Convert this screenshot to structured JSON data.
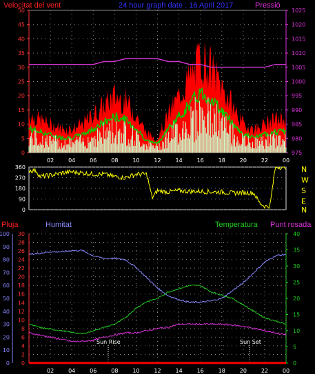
{
  "top": {
    "left_label": "Velocitat del vent",
    "title": "24 hour graph date : 16 April 2017",
    "right_label": "Pressió",
    "left_ticks": [
      "0",
      "5",
      "10",
      "15",
      "20",
      "25",
      "30",
      "35",
      "40",
      "45",
      "50"
    ],
    "right_ticks": [
      "975",
      "980",
      "985",
      "990",
      "995",
      "1000",
      "1005",
      "1010",
      "1015",
      "1020",
      "1025"
    ],
    "x_ticks": [
      "02",
      "04",
      "06",
      "08",
      "10",
      "12",
      "14",
      "16",
      "18",
      "20",
      "22",
      "00"
    ]
  },
  "dir": {
    "left_ticks": [
      "0",
      "90",
      "180",
      "270",
      "360"
    ],
    "right_labels": [
      "N",
      "W",
      "S",
      "E",
      "N"
    ]
  },
  "bottom": {
    "labels": {
      "pluja": "Pluja",
      "humitat": "Humitat",
      "temperatura": "Temperatura",
      "punt_rosada": "Punt rosada"
    },
    "humidity_ticks": [
      "0",
      "10",
      "20",
      "30",
      "40",
      "50",
      "60",
      "70",
      "80",
      "90",
      "100"
    ],
    "rain_ticks": [
      "0",
      "2",
      "4",
      "6",
      "8",
      "10",
      "12",
      "14",
      "16",
      "18",
      "20",
      "22",
      "24",
      "26",
      "28",
      "30"
    ],
    "temp_ticks": [
      "0",
      "5",
      "10",
      "15",
      "20",
      "25",
      "30",
      "35",
      "40"
    ],
    "x_ticks": [
      "02",
      "04",
      "06",
      "08",
      "10",
      "12",
      "14",
      "16",
      "18",
      "20",
      "22",
      "00"
    ],
    "sun_rise": "Sun Rise",
    "sun_set": "Sun Set"
  },
  "colors": {
    "gust": "#ff0000",
    "avg_wind": "#00cc00",
    "wind": "#ccffcc",
    "pressure": "#cc33cc",
    "direction": "#ffff00",
    "humidity": "#8888ff",
    "temperature": "#22cc22",
    "dewpoint": "#dd33dd",
    "rain": "#ff0000",
    "grid": "#888888"
  },
  "chart_data": [
    {
      "type": "line",
      "x_hours": [
        0,
        1,
        2,
        3,
        4,
        5,
        6,
        7,
        8,
        9,
        10,
        11,
        12,
        13,
        14,
        15,
        16,
        17,
        18,
        19,
        20,
        21,
        22,
        23,
        24
      ],
      "series": [
        {
          "name": "Velocitat del vent",
          "axis": "left",
          "values": [
            8,
            7,
            6,
            5,
            5,
            6,
            8,
            10,
            12,
            11,
            8,
            4,
            3,
            8,
            12,
            16,
            20,
            18,
            14,
            10,
            6,
            5,
            6,
            7,
            7
          ]
        },
        {
          "name": "Pressió",
          "axis": "right",
          "values": [
            1006,
            1006,
            1006,
            1006,
            1006,
            1006,
            1006,
            1007,
            1007,
            1008,
            1008,
            1008,
            1008,
            1007,
            1007,
            1006,
            1006,
            1005,
            1005,
            1005,
            1005,
            1005,
            1005,
            1006,
            1006
          ]
        }
      ],
      "ylim_left": [
        0,
        50
      ],
      "ylim_right": [
        975,
        1025
      ]
    },
    {
      "type": "line",
      "x_hours": [
        0,
        0.7,
        1,
        2,
        2.6,
        3,
        4,
        5,
        6,
        7,
        8,
        9,
        10,
        11,
        11.5,
        12,
        13,
        14,
        15,
        16,
        17,
        18,
        19,
        20,
        21,
        21.5,
        22,
        22.5,
        23,
        24
      ],
      "series": [
        {
          "name": "direction",
          "values": [
            330,
            330,
            280,
            290,
            300,
            310,
            320,
            310,
            300,
            300,
            280,
            270,
            300,
            300,
            100,
            160,
            150,
            160,
            155,
            155,
            150,
            150,
            140,
            145,
            140,
            60,
            30,
            30,
            360,
            360
          ]
        }
      ],
      "ylim": [
        0,
        360
      ]
    },
    {
      "type": "line",
      "x_hours": [
        0,
        1,
        2,
        3,
        4,
        5,
        6,
        7,
        8,
        9,
        10,
        11,
        12,
        13,
        14,
        15,
        16,
        17,
        18,
        19,
        20,
        21,
        22,
        23,
        24
      ],
      "series": [
        {
          "name": "Humitat",
          "axis": "humidity",
          "values": [
            84,
            85,
            86,
            86,
            87,
            87,
            83,
            81,
            81,
            80,
            74,
            66,
            58,
            52,
            49,
            47,
            47,
            48,
            50,
            56,
            62,
            70,
            78,
            83,
            84
          ]
        },
        {
          "name": "Temperatura",
          "axis": "temperature",
          "values": [
            12,
            11,
            10.5,
            10,
            9.5,
            9,
            10,
            11,
            12,
            14,
            17,
            19,
            20,
            22,
            23,
            24,
            24,
            22,
            21,
            20,
            18,
            16,
            14,
            13,
            12
          ]
        },
        {
          "name": "Punt rosada",
          "axis": "rain",
          "values": [
            7,
            6.5,
            6,
            5.5,
            5,
            5,
            5.3,
            6,
            6.5,
            7,
            7,
            7.5,
            8,
            8.3,
            9,
            9,
            9,
            9,
            9,
            8.8,
            8.5,
            8,
            7.5,
            7,
            6.5
          ]
        },
        {
          "name": "Pluja",
          "axis": "rain",
          "values": [
            0,
            0,
            0,
            0,
            0,
            0,
            0,
            0,
            0,
            0,
            0,
            0,
            0,
            0,
            0,
            0,
            0,
            0,
            0,
            0,
            0,
            0,
            0,
            0,
            0
          ]
        }
      ],
      "ylim_humidity": [
        0,
        100
      ],
      "ylim_rain": [
        0,
        30
      ],
      "ylim_temperature": [
        0,
        40
      ],
      "sun_rise_hour": 7.4,
      "sun_set_hour": 20.6
    }
  ]
}
